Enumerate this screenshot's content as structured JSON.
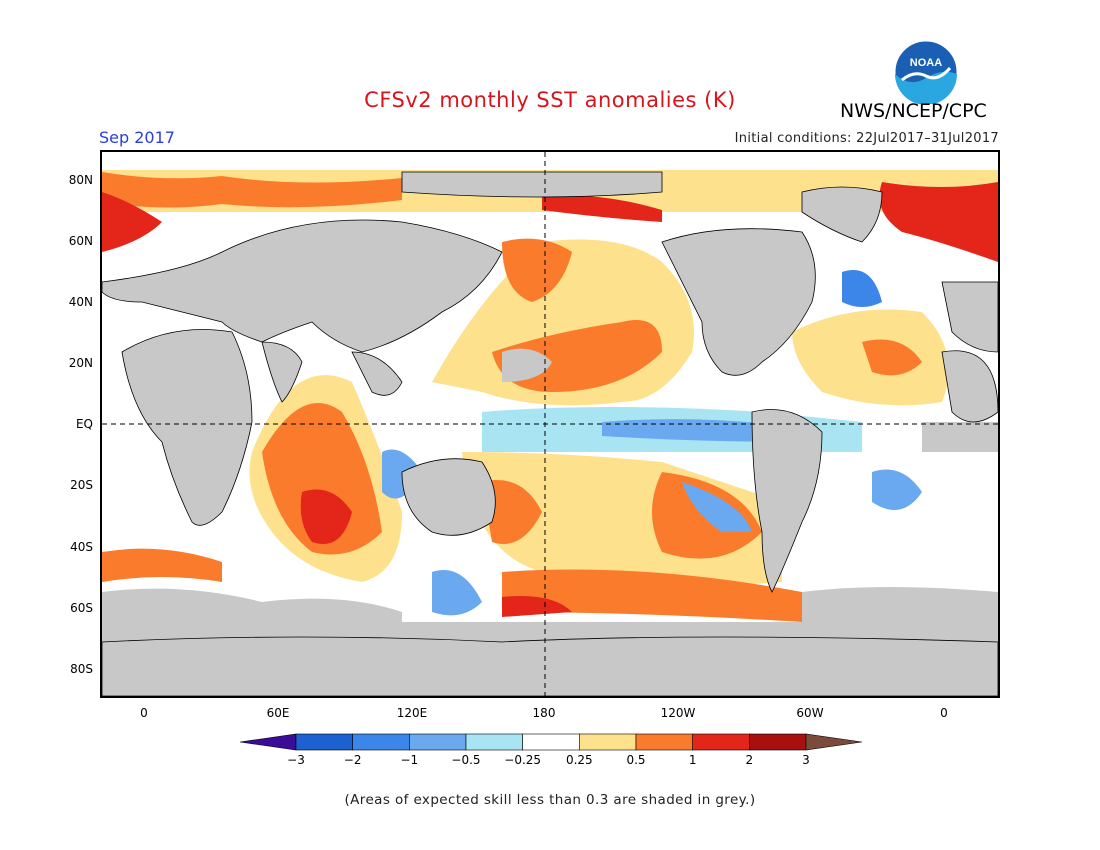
{
  "header": {
    "title": "CFSv2 monthly SST anomalies (K)",
    "organization": "NWS/NCEP/CPC",
    "logo_text": "NOAA",
    "month": "Sep 2017",
    "initial_conditions": "Initial conditions: 22Jul2017–31Jul2017"
  },
  "colors": {
    "title": "#d8141c",
    "month": "#2a3ee0",
    "land": "#c8c8c8",
    "low_skill": "#c8c8c8",
    "logo_blue": "#1a5fb4",
    "logo_inner": "#2aa7e0"
  },
  "map": {
    "lat_labels": [
      "80N",
      "60N",
      "40N",
      "20N",
      "EQ",
      "20S",
      "40S",
      "60S",
      "80S"
    ],
    "lon_labels": [
      "0",
      "60E",
      "120E",
      "180",
      "120W",
      "60W",
      "0"
    ],
    "lon_range": [
      -20,
      380
    ],
    "lat_range": [
      -90,
      90
    ],
    "equator_line": "dashed",
    "dateline": "dashed"
  },
  "legend": {
    "labels": [
      "−3",
      "−2",
      "−1",
      "−0.5",
      "−0.25",
      "0.25",
      "0.5",
      "1",
      "2",
      "3"
    ],
    "colors": [
      "#3a0c99",
      "#1d60d0",
      "#3b86e8",
      "#6aa8f0",
      "#a9e4f3",
      "#ffffff",
      "#fde18c",
      "#fb7b2c",
      "#e4251a",
      "#a80f0f",
      "#7a4a3a"
    ]
  },
  "footnote": "(Areas of expected skill less than 0.3 are shaded in grey.)"
}
